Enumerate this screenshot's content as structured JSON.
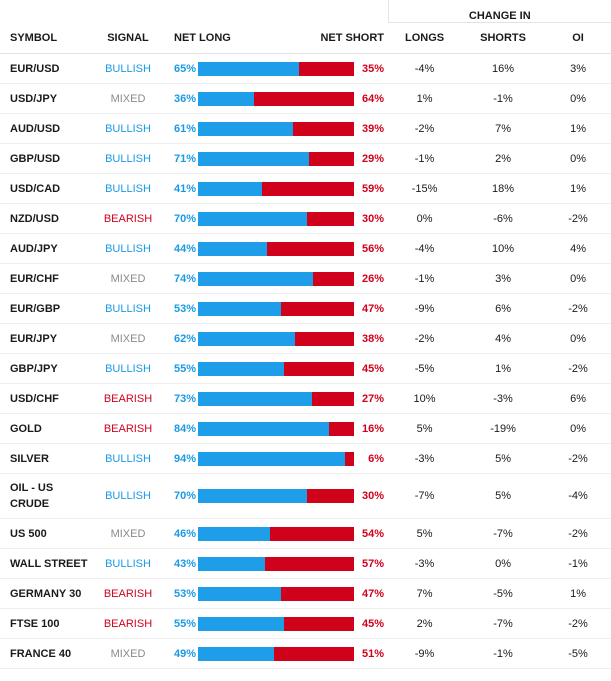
{
  "headers": {
    "symbol": "SYMBOL",
    "signal": "SIGNAL",
    "net_long": "NET LONG",
    "net_short": "NET SHORT",
    "change_in": "CHANGE IN",
    "longs": "LONGS",
    "shorts": "SHORTS",
    "oi": "OI"
  },
  "colors": {
    "long": "#1e9de8",
    "short": "#d0021b",
    "mixed": "#8a8a8a"
  },
  "rows": [
    {
      "symbol": "EUR/USD",
      "signal": "BULLISH",
      "net_long": "65%",
      "net_short": "35%",
      "long_frac": 0.65,
      "longs": "-4%",
      "shorts": "16%",
      "oi": "3%"
    },
    {
      "symbol": "USD/JPY",
      "signal": "MIXED",
      "net_long": "36%",
      "net_short": "64%",
      "long_frac": 0.36,
      "longs": "1%",
      "shorts": "-1%",
      "oi": "0%"
    },
    {
      "symbol": "AUD/USD",
      "signal": "BULLISH",
      "net_long": "61%",
      "net_short": "39%",
      "long_frac": 0.61,
      "longs": "-2%",
      "shorts": "7%",
      "oi": "1%"
    },
    {
      "symbol": "GBP/USD",
      "signal": "BULLISH",
      "net_long": "71%",
      "net_short": "29%",
      "long_frac": 0.71,
      "longs": "-1%",
      "shorts": "2%",
      "oi": "0%"
    },
    {
      "symbol": "USD/CAD",
      "signal": "BULLISH",
      "net_long": "41%",
      "net_short": "59%",
      "long_frac": 0.41,
      "longs": "-15%",
      "shorts": "18%",
      "oi": "1%"
    },
    {
      "symbol": "NZD/USD",
      "signal": "BEARISH",
      "net_long": "70%",
      "net_short": "30%",
      "long_frac": 0.7,
      "longs": "0%",
      "shorts": "-6%",
      "oi": "-2%"
    },
    {
      "symbol": "AUD/JPY",
      "signal": "BULLISH",
      "net_long": "44%",
      "net_short": "56%",
      "long_frac": 0.44,
      "longs": "-4%",
      "shorts": "10%",
      "oi": "4%"
    },
    {
      "symbol": "EUR/CHF",
      "signal": "MIXED",
      "net_long": "74%",
      "net_short": "26%",
      "long_frac": 0.74,
      "longs": "-1%",
      "shorts": "3%",
      "oi": "0%"
    },
    {
      "symbol": "EUR/GBP",
      "signal": "BULLISH",
      "net_long": "53%",
      "net_short": "47%",
      "long_frac": 0.53,
      "longs": "-9%",
      "shorts": "6%",
      "oi": "-2%"
    },
    {
      "symbol": "EUR/JPY",
      "signal": "MIXED",
      "net_long": "62%",
      "net_short": "38%",
      "long_frac": 0.62,
      "longs": "-2%",
      "shorts": "4%",
      "oi": "0%"
    },
    {
      "symbol": "GBP/JPY",
      "signal": "BULLISH",
      "net_long": "55%",
      "net_short": "45%",
      "long_frac": 0.55,
      "longs": "-5%",
      "shorts": "1%",
      "oi": "-2%"
    },
    {
      "symbol": "USD/CHF",
      "signal": "BEARISH",
      "net_long": "73%",
      "net_short": "27%",
      "long_frac": 0.73,
      "longs": "10%",
      "shorts": "-3%",
      "oi": "6%"
    },
    {
      "symbol": "GOLD",
      "signal": "BEARISH",
      "net_long": "84%",
      "net_short": "16%",
      "long_frac": 0.84,
      "longs": "5%",
      "shorts": "-19%",
      "oi": "0%"
    },
    {
      "symbol": "SILVER",
      "signal": "BULLISH",
      "net_long": "94%",
      "net_short": "6%",
      "long_frac": 0.94,
      "longs": "-3%",
      "shorts": "5%",
      "oi": "-2%"
    },
    {
      "symbol": "OIL - US CRUDE",
      "signal": "BULLISH",
      "net_long": "70%",
      "net_short": "30%",
      "long_frac": 0.7,
      "longs": "-7%",
      "shorts": "5%",
      "oi": "-4%"
    },
    {
      "symbol": "US 500",
      "signal": "MIXED",
      "net_long": "46%",
      "net_short": "54%",
      "long_frac": 0.46,
      "longs": "5%",
      "shorts": "-7%",
      "oi": "-2%"
    },
    {
      "symbol": "WALL STREET",
      "signal": "BULLISH",
      "net_long": "43%",
      "net_short": "57%",
      "long_frac": 0.43,
      "longs": "-3%",
      "shorts": "0%",
      "oi": "-1%"
    },
    {
      "symbol": "GERMANY 30",
      "signal": "BEARISH",
      "net_long": "53%",
      "net_short": "47%",
      "long_frac": 0.53,
      "longs": "7%",
      "shorts": "-5%",
      "oi": "1%"
    },
    {
      "symbol": "FTSE 100",
      "signal": "BEARISH",
      "net_long": "55%",
      "net_short": "45%",
      "long_frac": 0.55,
      "longs": "2%",
      "shorts": "-7%",
      "oi": "-2%"
    },
    {
      "symbol": "FRANCE 40",
      "signal": "MIXED",
      "net_long": "49%",
      "net_short": "51%",
      "long_frac": 0.49,
      "longs": "-9%",
      "shorts": "-1%",
      "oi": "-5%"
    }
  ]
}
